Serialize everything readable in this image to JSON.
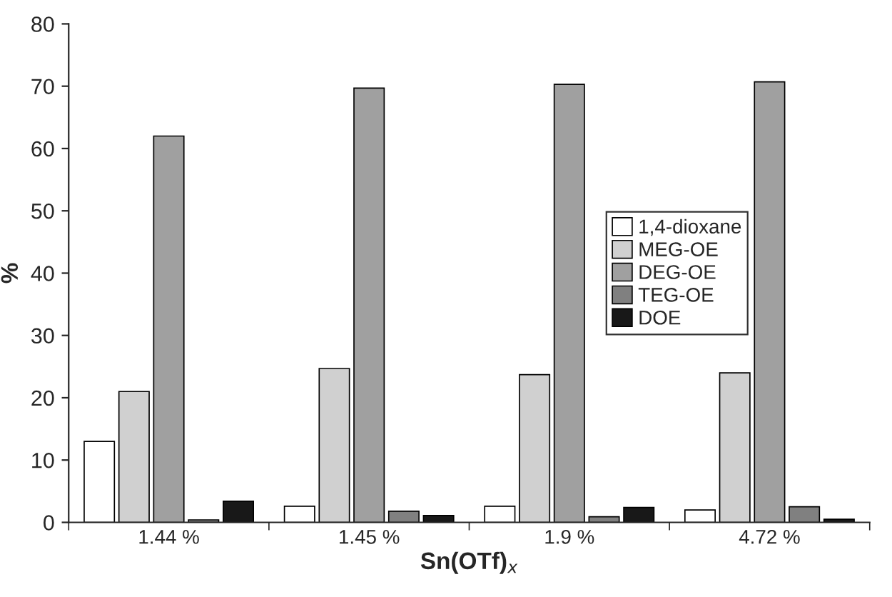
{
  "chart_data": {
    "type": "bar",
    "xlabel": "Sn(OTf)$_{x}$",
    "ylabel": "%",
    "categories": [
      "1.44 %",
      "1.45 %",
      "1.9 %",
      "4.72 %"
    ],
    "series": [
      {
        "name": "1,4-dioxane",
        "color": "#ffffff",
        "values": [
          13,
          2.6,
          2.6,
          2.0
        ]
      },
      {
        "name": "MEG-OE",
        "color": "#d0d0d0",
        "values": [
          21,
          24.7,
          23.7,
          24.0
        ]
      },
      {
        "name": "DEG-OE",
        "color": "#a0a0a0",
        "values": [
          62,
          69.7,
          70.3,
          70.7
        ]
      },
      {
        "name": "TEG-OE",
        "color": "#808080",
        "values": [
          0.4,
          1.8,
          0.9,
          2.5
        ]
      },
      {
        "name": "DOE",
        "color": "#181818",
        "values": [
          3.4,
          1.1,
          2.4,
          0.5
        ]
      }
    ],
    "ylim": [
      0,
      80
    ],
    "yticks": [
      0,
      10,
      20,
      30,
      40,
      50,
      60,
      70,
      80
    ],
    "grid": false,
    "legend": "center right"
  }
}
